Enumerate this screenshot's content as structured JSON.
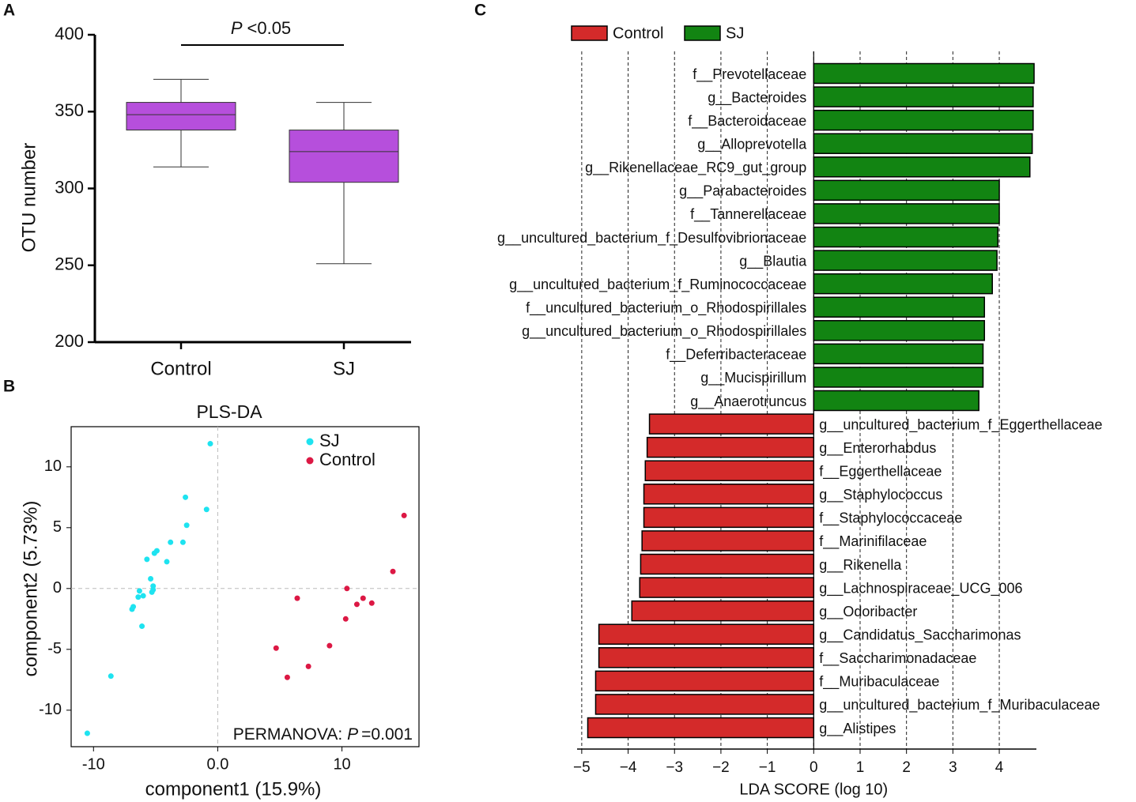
{
  "chart_data": [
    {
      "panel": "A",
      "type": "box",
      "ylabel": "OTU number",
      "categories": [
        "Control",
        "SJ"
      ],
      "color": "#b64fdc",
      "boxes": [
        {
          "min": 314,
          "q1": 338,
          "median": 348,
          "q3": 356,
          "max": 371
        },
        {
          "min": 251,
          "q1": 304,
          "median": 324,
          "q3": 338,
          "max": 356
        }
      ],
      "ylim": [
        200,
        400
      ],
      "yticks": [
        200,
        250,
        300,
        350,
        400
      ],
      "annotation": {
        "italic": "P",
        "text": "<0.05"
      }
    },
    {
      "panel": "B",
      "type": "scatter",
      "title": "PLS-DA",
      "xlabel": "component1 (15.9%)",
      "ylabel": "component2 (5.73%)",
      "xlim": [
        -11.8,
        16.2
      ],
      "ylim": [
        -13.0,
        13.3
      ],
      "xticks": [
        -10,
        {
          "value": 0,
          "label": "0.0"
        },
        10
      ],
      "yticks": [
        -10,
        -5,
        0,
        5,
        10
      ],
      "reference_lines": {
        "x": 0,
        "y": 0
      },
      "legend": "top-right",
      "annotation": {
        "text": "PERMANOVA:",
        "italic": "P",
        "value": "=0.001"
      },
      "series": [
        {
          "name": "SJ",
          "color": "#1ee3f0",
          "x": [
            -0.6,
            -2.6,
            -0.9,
            -2.5,
            -2.8,
            -3.8,
            -4.9,
            -5.1,
            -5.7,
            -4.1,
            -5.4,
            -5.2,
            -5.2,
            -5.3,
            -6.3,
            -6.4,
            -6.0,
            -6.8,
            -6.9,
            -6.1,
            -8.6,
            -10.5
          ],
          "y": [
            11.9,
            7.5,
            6.5,
            5.2,
            3.8,
            3.8,
            3.1,
            2.9,
            2.4,
            2.2,
            0.8,
            0.2,
            -0.1,
            -0.3,
            -0.2,
            -0.7,
            -0.6,
            -1.5,
            -1.7,
            -3.1,
            -7.2,
            -11.9
          ]
        },
        {
          "name": "Control",
          "color": "#dc1844",
          "x": [
            15.0,
            14.1,
            10.4,
            11.7,
            12.4,
            11.2,
            6.4,
            10.3,
            9.0,
            4.7,
            7.3,
            5.6
          ],
          "y": [
            6.0,
            1.4,
            0.0,
            -0.8,
            -1.2,
            -1.3,
            -0.8,
            -2.5,
            -4.7,
            -4.9,
            -6.4,
            -7.3
          ]
        }
      ]
    },
    {
      "panel": "C",
      "type": "hbar",
      "xlabel": "LDA SCORE (log 10)",
      "xlim": [
        -5.1,
        4.8
      ],
      "xticks": [
        {
          "value": -5,
          "label": "−5"
        },
        {
          "value": -4,
          "label": "−4"
        },
        {
          "value": -3,
          "label": "−3"
        },
        {
          "value": -2,
          "label": "−2"
        },
        {
          "value": -1,
          "label": "−1"
        },
        0,
        1,
        2,
        3,
        4
      ],
      "grid": true,
      "categories": [
        "f__Prevotellaceae",
        "g__Bacteroides",
        "f__Bacteroidaceae",
        "g__Alloprevotella",
        "g__Rikenellaceae_RC9_gut_group",
        "g__Parabacteroides",
        "f__Tannerellaceae",
        "g__uncultured_bacterium_f_Desulfovibrionaceae",
        "g__Blautia",
        "g__uncultured_bacterium_f_Ruminococcaceae",
        "f__uncultured_bacterium_o_Rhodospirillales",
        "g__uncultured_bacterium_o_Rhodospirillales",
        "f__Deferribacteraceae",
        "g__Mucispirillum",
        "g__Anaerotruncus",
        "g__uncultured_bacterium_f_Eggerthellaceae",
        "g__Enterorhabdus",
        "f__Eggerthellaceae",
        "g__Staphylococcus",
        "f__Staphylococcaceae",
        "f__Marinifilaceae",
        "g__Rikenella",
        "g__Lachnospiraceae_UCG_006",
        "g__Odoribacter",
        "g__Candidatus_Saccharimonas",
        "f__Saccharimonadaceae",
        "f__Muribaculaceae",
        "g__uncultured_bacterium_f_Muribaculaceae",
        "g__Alistipes"
      ],
      "series": [
        {
          "name": "Control",
          "color": "#d42a2a",
          "values": [
            null,
            null,
            null,
            null,
            null,
            null,
            null,
            null,
            null,
            null,
            null,
            null,
            null,
            null,
            null,
            -3.54,
            -3.59,
            -3.63,
            -3.66,
            -3.66,
            -3.7,
            -3.73,
            -3.75,
            -3.92,
            -4.63,
            -4.63,
            -4.7,
            -4.7,
            -4.87
          ]
        },
        {
          "name": "SJ",
          "color": "#128412",
          "values": [
            4.75,
            4.73,
            4.73,
            4.71,
            4.66,
            4.0,
            4.0,
            3.97,
            3.95,
            3.85,
            3.68,
            3.68,
            3.65,
            3.65,
            3.56,
            null,
            null,
            null,
            null,
            null,
            null,
            null,
            null,
            null,
            null,
            null,
            null,
            null,
            null
          ]
        }
      ]
    }
  ]
}
